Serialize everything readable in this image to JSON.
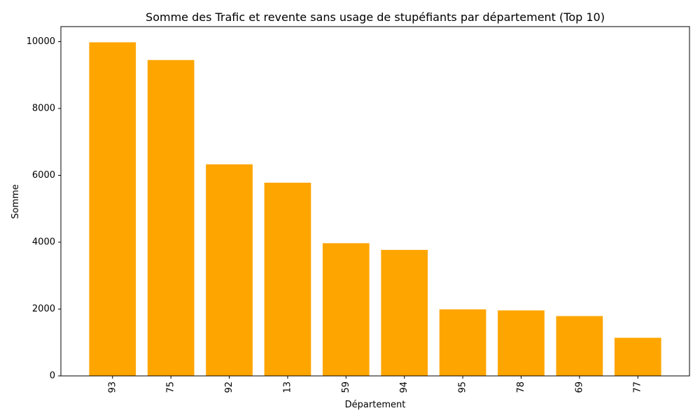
{
  "chart_data": {
    "type": "bar",
    "title": "Somme des Trafic et revente sans usage de stupéfiants par département (Top 10)",
    "xlabel": "Département",
    "ylabel": "Somme",
    "categories": [
      "93",
      "75",
      "92",
      "13",
      "59",
      "94",
      "95",
      "78",
      "69",
      "77"
    ],
    "values": [
      9980,
      9450,
      6330,
      5780,
      3970,
      3770,
      1990,
      1960,
      1790,
      1140
    ],
    "ylim": [
      0,
      10450
    ],
    "yticks": [
      0,
      2000,
      4000,
      6000,
      8000,
      10000
    ],
    "ytick_labels": [
      "0",
      "2000",
      "4000",
      "6000",
      "8000",
      "10000"
    ],
    "bar_color": "#FFA500",
    "grid": false,
    "x_tick_rotation": "vertical"
  }
}
